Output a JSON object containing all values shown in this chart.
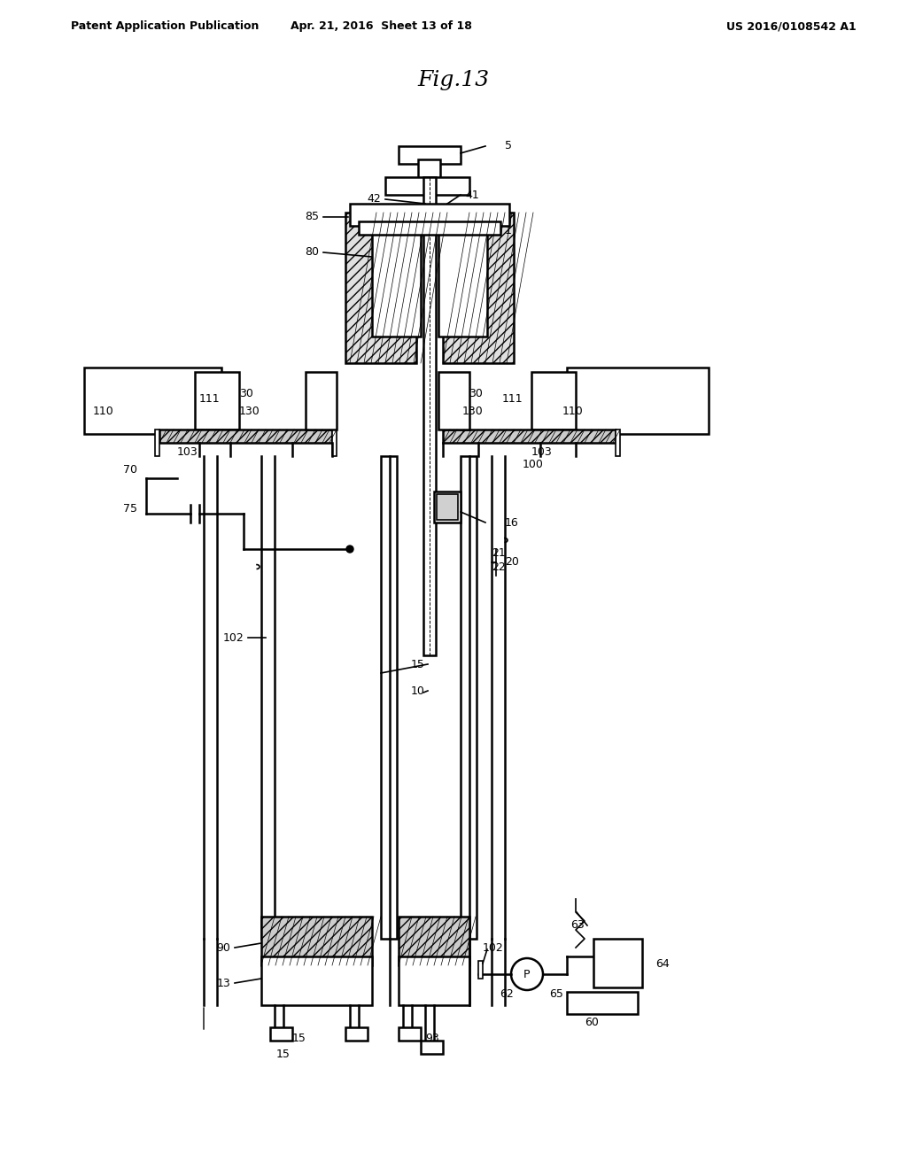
{
  "title": "Fig.13",
  "header_left": "Patent Application Publication",
  "header_mid": "Apr. 21, 2016  Sheet 13 of 18",
  "header_right": "US 2016/0108542 A1",
  "bg_color": "#ffffff",
  "line_color": "#000000",
  "hatch_color": "#000000"
}
